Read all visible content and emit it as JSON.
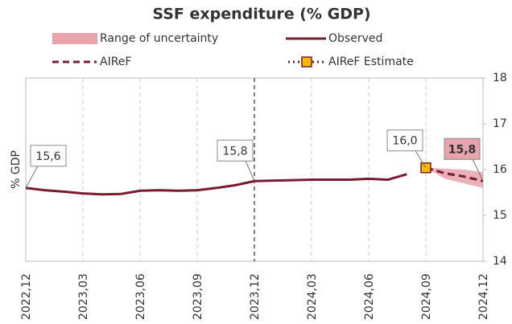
{
  "chart_data": {
    "type": "line",
    "title": "SSF expenditure (% GDP)",
    "y_label": "% GDP",
    "categories": [
      "2022,12",
      null,
      null,
      "2023,03",
      null,
      null,
      "2023,06",
      null,
      null,
      "2023,09",
      null,
      null,
      "2023,12",
      null,
      null,
      "2024,03",
      null,
      null,
      "2024,06",
      null,
      null,
      "2024,09",
      null,
      null,
      "2024,12"
    ],
    "reference_line": "2023,12",
    "band": {
      "name": "Range of uncertainty",
      "color": "#e8a3ab",
      "low": [
        null,
        null,
        null,
        null,
        null,
        null,
        null,
        null,
        null,
        null,
        null,
        null,
        null,
        null,
        null,
        null,
        null,
        null,
        null,
        null,
        null,
        16.04,
        15.8,
        15.7,
        15.6
      ],
      "high": [
        null,
        null,
        null,
        null,
        null,
        null,
        null,
        null,
        null,
        null,
        null,
        null,
        null,
        null,
        null,
        null,
        null,
        null,
        null,
        null,
        null,
        16.04,
        16.02,
        16.0,
        15.95
      ]
    },
    "series": [
      {
        "name": "Observed",
        "color": "#7b1b31",
        "style": "solid",
        "values": [
          15.6,
          15.55,
          15.52,
          15.48,
          15.46,
          15.47,
          15.54,
          15.55,
          15.54,
          15.55,
          15.6,
          15.66,
          15.75,
          15.76,
          15.77,
          15.78,
          15.78,
          15.78,
          15.8,
          15.78,
          15.9,
          null,
          null,
          null,
          null
        ],
        "value_labels": [
          "15,6",
          null,
          null,
          null,
          null,
          null,
          null,
          null,
          null,
          null,
          null,
          null,
          "15,8",
          null,
          null,
          null,
          null,
          null,
          null,
          null,
          null,
          null,
          null,
          null,
          null
        ]
      },
      {
        "name": "AIReF",
        "color": "#7b1b31",
        "style": "dashed",
        "values": [
          null,
          null,
          null,
          null,
          null,
          null,
          null,
          null,
          null,
          null,
          null,
          null,
          null,
          null,
          null,
          null,
          null,
          null,
          null,
          null,
          null,
          16.04,
          15.92,
          15.85,
          15.75
        ],
        "value_labels": [
          null,
          null,
          null,
          null,
          null,
          null,
          null,
          null,
          null,
          null,
          null,
          null,
          null,
          null,
          null,
          null,
          null,
          null,
          null,
          null,
          null,
          null,
          null,
          null,
          "15,8"
        ]
      },
      {
        "name": "AIReF Estimate",
        "color": "#7b1b31",
        "marker_color": "#f5b800",
        "style": "marker",
        "values": [
          null,
          null,
          null,
          null,
          null,
          null,
          null,
          null,
          null,
          null,
          null,
          null,
          null,
          null,
          null,
          null,
          null,
          null,
          null,
          null,
          null,
          16.04,
          null,
          null,
          null
        ],
        "value_labels": [
          null,
          null,
          null,
          null,
          null,
          null,
          null,
          null,
          null,
          null,
          null,
          null,
          null,
          null,
          null,
          null,
          null,
          null,
          null,
          null,
          null,
          "16,0",
          null,
          null,
          null
        ]
      }
    ],
    "ylim": [
      14,
      18
    ],
    "yticks": [
      14,
      15,
      16,
      17,
      18
    ],
    "grid": true
  }
}
